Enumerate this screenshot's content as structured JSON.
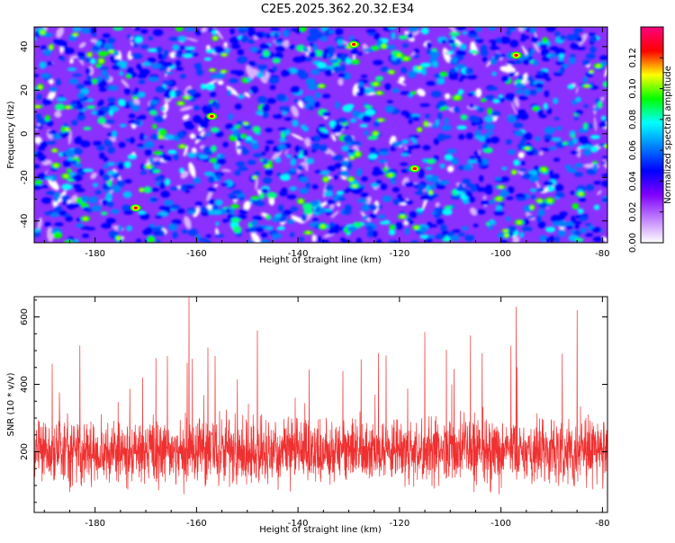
{
  "title": "C2E5.2025.362.20.32.E34",
  "colors": {
    "line": "#f03030",
    "spectrum": [
      "#ffffff",
      "#c080ff",
      "#8000ff",
      "#0000ff",
      "#0080ff",
      "#00ffff",
      "#00ff00",
      "#ffff00",
      "#ff0000",
      "#ff0080"
    ]
  },
  "chart_data": [
    {
      "type": "heatmap",
      "title": "C2E5.2025.362.20.32.E34",
      "xlabel": "Height of straight line (km)",
      "ylabel": "Frequency (Hz)",
      "xlim": [
        -192,
        -79
      ],
      "ylim": [
        -50,
        49
      ],
      "xticks": [
        -180,
        -160,
        -140,
        -120,
        -100,
        -80
      ],
      "yticks": [
        -40,
        -20,
        0,
        20,
        40
      ],
      "colorbar": {
        "label": "Normalized spectral amplitude",
        "range": [
          0,
          0.14
        ],
        "ticks": [
          "0.00",
          "0.02",
          "0.04",
          "0.06",
          "0.08",
          "0.10",
          "0.12"
        ]
      },
      "description": "dense noise-like speckle, normalized amplitude mostly 0.00-0.06 with isolated peaks up to ~0.13",
      "peaks": [
        {
          "x": -172,
          "y": -34,
          "value": 0.13
        },
        {
          "x": -157,
          "y": 8,
          "value": 0.11
        },
        {
          "x": -129,
          "y": 41,
          "value": 0.1
        },
        {
          "x": -117,
          "y": -16,
          "value": 0.11
        },
        {
          "x": -97,
          "y": 36,
          "value": 0.12
        }
      ]
    },
    {
      "type": "line",
      "xlabel": "Height of straight line (km)",
      "ylabel": "SNR (10 * v/v)",
      "xlim": [
        -192,
        -79
      ],
      "ylim": [
        20,
        660
      ],
      "xticks": [
        -180,
        -160,
        -140,
        -120,
        -100,
        -80
      ],
      "yticks": [
        200,
        400,
        600
      ],
      "series": [
        {
          "name": "SNR",
          "description": "dense noisy trace centred near 200, typical range 80-330, spikes to ~660",
          "spikes": [
            {
              "x": -161.5,
              "y": 660
            },
            {
              "x": -97,
              "y": 630
            },
            {
              "x": -85,
              "y": 620
            },
            {
              "x": -148,
              "y": 560
            },
            {
              "x": -115,
              "y": 555
            },
            {
              "x": -106,
              "y": 545
            },
            {
              "x": -183,
              "y": 515
            }
          ]
        }
      ]
    }
  ]
}
